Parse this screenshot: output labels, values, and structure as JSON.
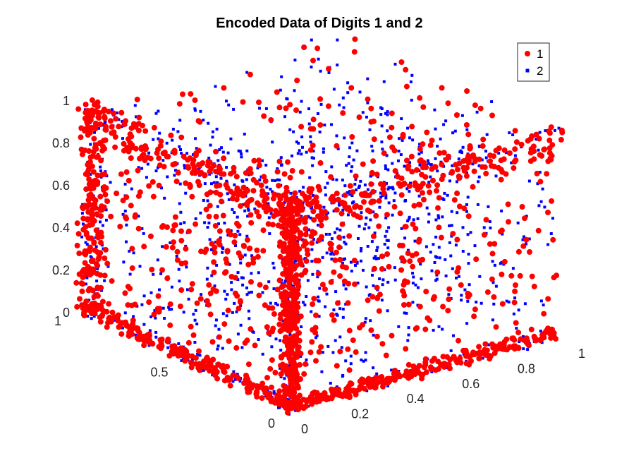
{
  "chart_data": {
    "type": "scatter",
    "title": "Encoded Data of Digits 1 and 2",
    "xlabel": "",
    "ylabel": "",
    "zlabel": "",
    "projection": "3d",
    "xlim": [
      0,
      1
    ],
    "ylim": [
      0,
      1
    ],
    "zlim": [
      0,
      1
    ],
    "x_ticks": [
      "0",
      "0.2",
      "0.4",
      "0.6",
      "0.8",
      "1"
    ],
    "y_ticks": [
      "0",
      "0.5",
      "1"
    ],
    "z_ticks": [
      "0",
      "0.2",
      "0.4",
      "0.6",
      "0.8",
      "1"
    ],
    "grid": false,
    "legend_position": "top-right",
    "series": [
      {
        "name": "1",
        "color": "#ff0000",
        "marker": "filled-circle",
        "points": [
          [
            0.02,
            0.01,
            0.95
          ],
          [
            0.05,
            0.02,
            0.88
          ],
          [
            0.01,
            0.03,
            0.72
          ],
          [
            0.04,
            0.01,
            0.55
          ],
          [
            0.02,
            0.02,
            0.41
          ],
          [
            0.03,
            0.04,
            0.28
          ],
          [
            0.01,
            0.01,
            0.12
          ],
          [
            0.02,
            0.05,
            0.05
          ],
          [
            0.06,
            0.02,
            0.63
          ],
          [
            0.03,
            0.01,
            0.33
          ],
          [
            0.95,
            0.02,
            0.85
          ],
          [
            0.88,
            0.01,
            0.92
          ],
          [
            0.72,
            0.03,
            0.9
          ],
          [
            0.55,
            0.02,
            0.88
          ],
          [
            0.41,
            0.01,
            0.93
          ],
          [
            0.3,
            0.02,
            0.85
          ],
          [
            0.18,
            0.01,
            0.9
          ],
          [
            0.1,
            0.02,
            0.82
          ],
          [
            0.97,
            0.03,
            0.65
          ],
          [
            0.96,
            0.01,
            0.48
          ],
          [
            0.98,
            0.02,
            0.3
          ],
          [
            0.95,
            0.04,
            0.12
          ],
          [
            0.9,
            0.02,
            0.04
          ],
          [
            0.75,
            0.01,
            0.02
          ],
          [
            0.6,
            0.03,
            0.01
          ],
          [
            0.45,
            0.02,
            0.03
          ],
          [
            0.3,
            0.01,
            0.02
          ],
          [
            0.15,
            0.02,
            0.01
          ],
          [
            0.02,
            0.3,
            0.02
          ],
          [
            0.01,
            0.5,
            0.01
          ],
          [
            0.03,
            0.7,
            0.02
          ],
          [
            0.02,
            0.9,
            0.03
          ],
          [
            0.01,
            0.98,
            0.2
          ],
          [
            0.02,
            0.97,
            0.45
          ],
          [
            0.03,
            0.96,
            0.7
          ],
          [
            0.02,
            0.98,
            0.92
          ],
          [
            0.2,
            0.97,
            0.95
          ],
          [
            0.4,
            0.98,
            0.9
          ],
          [
            0.6,
            0.96,
            0.93
          ],
          [
            0.85,
            0.97,
            0.96
          ],
          [
            0.97,
            0.95,
            0.97
          ],
          [
            0.96,
            0.7,
            0.95
          ],
          [
            0.98,
            0.4,
            0.92
          ],
          [
            0.97,
            0.2,
            0.9
          ],
          [
            0.05,
            0.05,
            0.98
          ],
          [
            0.02,
            0.03,
            0.5
          ],
          [
            0.04,
            0.02,
            0.6
          ],
          [
            0.03,
            0.05,
            0.7
          ],
          [
            0.06,
            0.03,
            0.8
          ],
          [
            0.02,
            0.04,
            0.45
          ],
          [
            0.5,
            0.5,
            0.5
          ],
          [
            0.3,
            0.6,
            0.4
          ],
          [
            0.7,
            0.3,
            0.6
          ],
          [
            0.6,
            0.7,
            0.3
          ],
          [
            0.4,
            0.2,
            0.7
          ],
          [
            0.2,
            0.4,
            0.3
          ],
          [
            0.8,
            0.5,
            0.2
          ],
          [
            0.35,
            0.35,
            0.55
          ],
          [
            0.65,
            0.45,
            0.75
          ],
          [
            0.25,
            0.75,
            0.65
          ]
        ]
      },
      {
        "name": "2",
        "color": "#0000ff",
        "marker": "filled-square",
        "points": [
          [
            0.05,
            0.03,
            0.7
          ],
          [
            0.1,
            0.05,
            0.5
          ],
          [
            0.03,
            0.1,
            0.3
          ],
          [
            0.08,
            0.02,
            0.2
          ],
          [
            0.12,
            0.04,
            0.9
          ],
          [
            0.2,
            0.02,
            0.75
          ],
          [
            0.35,
            0.05,
            0.6
          ],
          [
            0.5,
            0.03,
            0.45
          ],
          [
            0.65,
            0.02,
            0.35
          ],
          [
            0.8,
            0.04,
            0.55
          ],
          [
            0.92,
            0.03,
            0.75
          ],
          [
            0.85,
            0.05,
            0.15
          ],
          [
            0.6,
            0.02,
            0.08
          ],
          [
            0.4,
            0.04,
            0.05
          ],
          [
            0.05,
            0.4,
            0.1
          ],
          [
            0.04,
            0.6,
            0.3
          ],
          [
            0.03,
            0.8,
            0.5
          ],
          [
            0.05,
            0.95,
            0.8
          ],
          [
            0.3,
            0.9,
            0.85
          ],
          [
            0.7,
            0.92,
            0.8
          ],
          [
            0.9,
            0.8,
            0.88
          ],
          [
            0.92,
            0.5,
            0.7
          ],
          [
            0.95,
            0.3,
            0.5
          ],
          [
            0.45,
            0.45,
            0.3
          ],
          [
            0.55,
            0.3,
            0.45
          ],
          [
            0.3,
            0.55,
            0.6
          ],
          [
            0.7,
            0.6,
            0.55
          ],
          [
            0.15,
            0.2,
            0.4
          ],
          [
            0.85,
            0.15,
            0.35
          ],
          [
            0.25,
            0.85,
            0.25
          ]
        ]
      }
    ]
  },
  "legend": {
    "items": [
      {
        "label": "1",
        "color": "#ff0000"
      },
      {
        "label": "2",
        "color": "#0000ff"
      }
    ]
  }
}
